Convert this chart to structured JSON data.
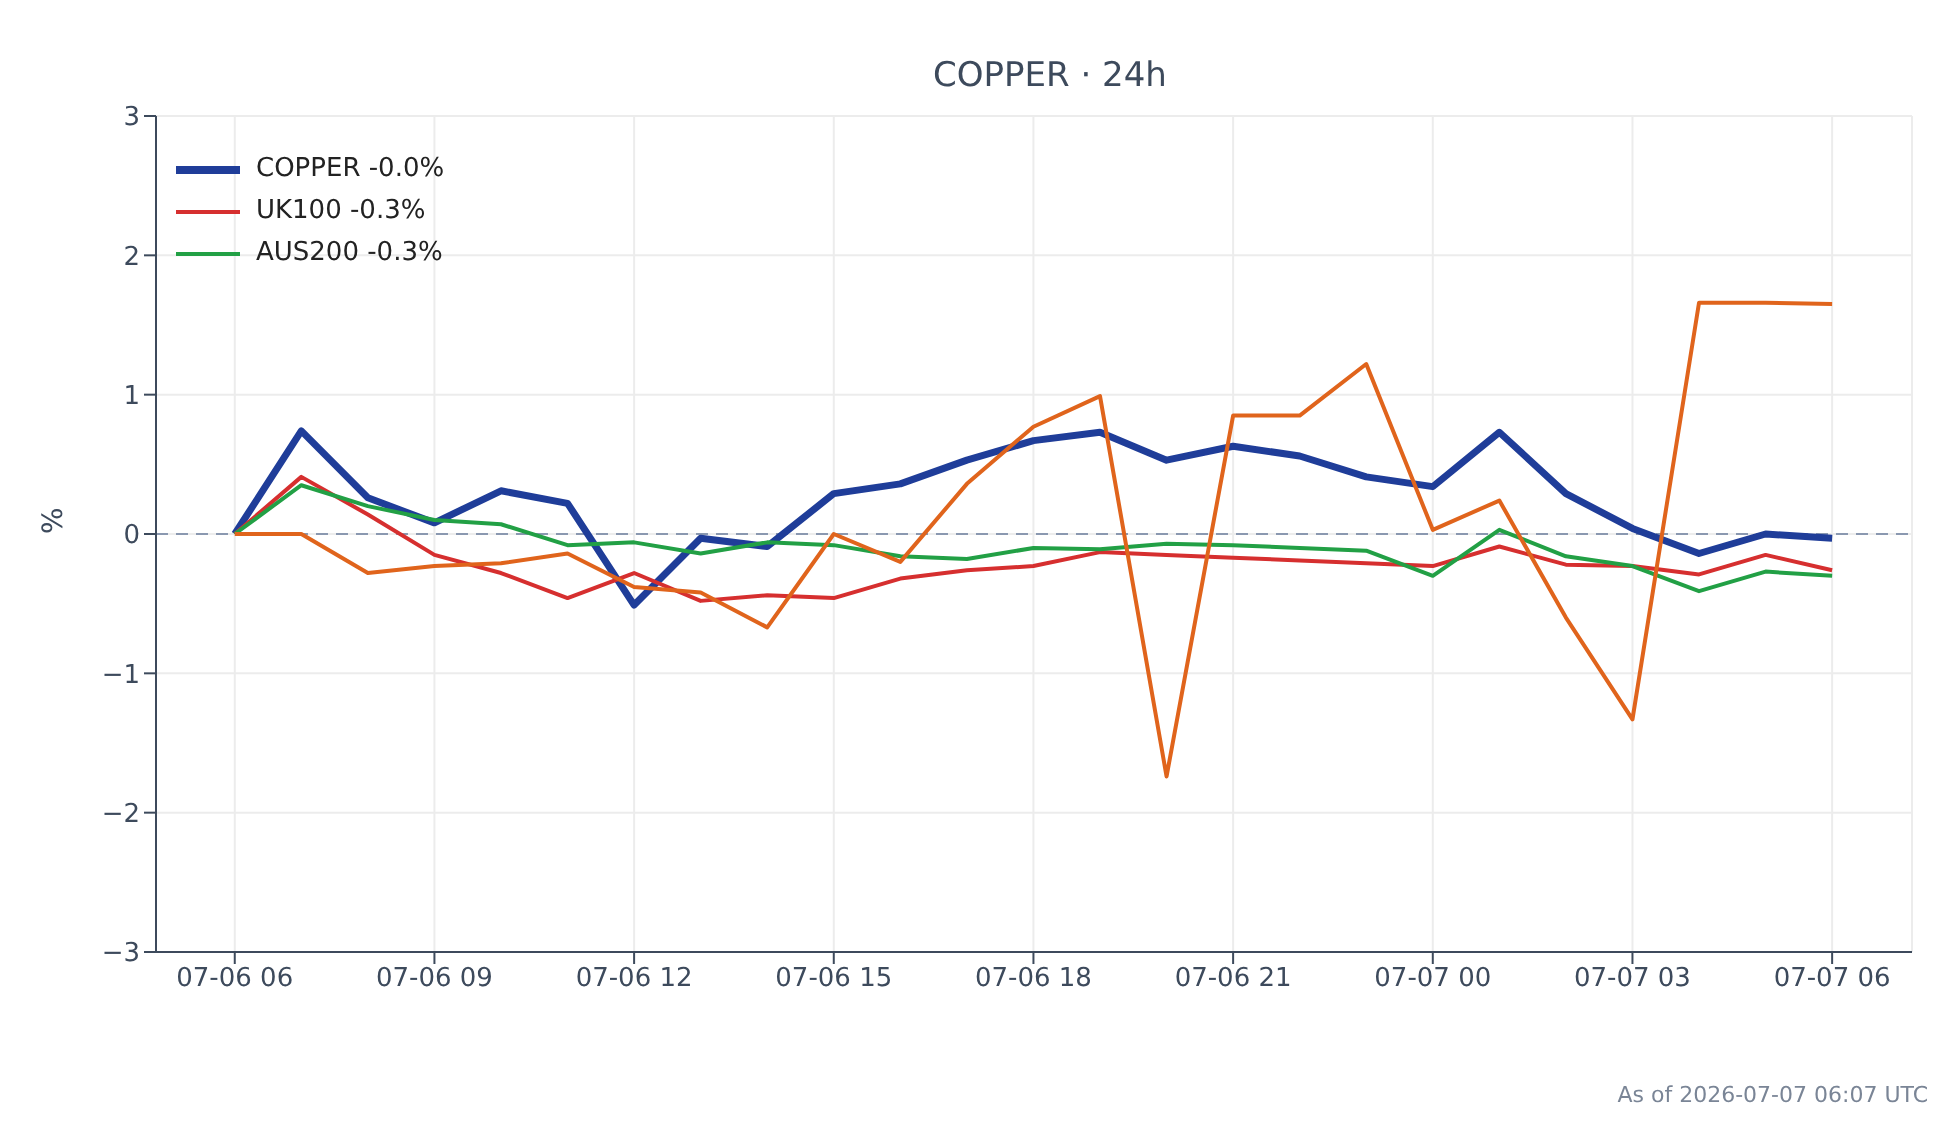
{
  "chart_data": {
    "type": "line",
    "title": "COPPER · 24h",
    "ylabel": "%",
    "x": [
      "2026-07-06T06:00",
      "2026-07-06T07:00",
      "2026-07-06T08:00",
      "2026-07-06T09:00",
      "2026-07-06T10:00",
      "2026-07-06T11:00",
      "2026-07-06T12:00",
      "2026-07-06T13:00",
      "2026-07-06T14:00",
      "2026-07-06T15:00",
      "2026-07-06T16:00",
      "2026-07-06T17:00",
      "2026-07-06T18:00",
      "2026-07-06T19:00",
      "2026-07-06T20:00",
      "2026-07-06T21:00",
      "2026-07-06T22:00",
      "2026-07-06T23:00",
      "2026-07-07T00:00",
      "2026-07-07T01:00",
      "2026-07-07T02:00",
      "2026-07-07T03:00",
      "2026-07-07T04:00",
      "2026-07-07T05:00",
      "2026-07-07T06:00"
    ],
    "series": [
      {
        "name": "COPPER -0.0%",
        "color": "#1f3d99",
        "values": [
          0,
          0.74,
          0.26,
          0.08,
          0.31,
          0.22,
          -0.51,
          -0.03,
          -0.09,
          0.29,
          0.36,
          0.53,
          0.67,
          0.73,
          0.53,
          0.63,
          0.56,
          0.41,
          0.34,
          0.73,
          0.29,
          0.04,
          -0.14,
          0,
          -0.03
        ]
      },
      {
        "name": "UK100 -0.3%",
        "color": "#d62f2f",
        "values": [
          0,
          0.41,
          0.14,
          -0.15,
          -0.28,
          -0.46,
          -0.28,
          -0.48,
          -0.44,
          -0.46,
          -0.32,
          -0.26,
          -0.23,
          -0.13,
          -0.15,
          -0.17,
          -0.19,
          -0.21,
          -0.23,
          -0.09,
          -0.22,
          -0.23,
          -0.29,
          -0.15,
          -0.26
        ]
      },
      {
        "name": "AUS200 -0.3%",
        "color": "#22a045",
        "values": [
          0,
          0.35,
          0.2,
          0.1,
          0.07,
          -0.08,
          -0.06,
          -0.14,
          -0.06,
          -0.08,
          -0.16,
          -0.18,
          -0.1,
          -0.11,
          -0.07,
          -0.08,
          -0.1,
          -0.12,
          -0.3,
          0.03,
          -0.16,
          -0.23,
          -0.41,
          -0.27,
          -0.3
        ]
      },
      {
        "color": "#e0641c",
        "values": [
          0,
          0,
          -0.28,
          -0.23,
          -0.21,
          -0.14,
          -0.38,
          -0.42,
          -0.67,
          0,
          -0.2,
          0.36,
          0.77,
          0.99,
          -1.74,
          0.85,
          0.85,
          1.22,
          0.03,
          0.24,
          -0.6,
          -1.33,
          1.66,
          1.66,
          1.65
        ]
      }
    ],
    "xlim": [
      "2026-07-06T04:49",
      "2026-07-07T07:12"
    ],
    "xticks": [
      {
        "value": "2026-07-06T06:00",
        "label": "07-06 06"
      },
      {
        "value": "2026-07-06T09:00",
        "label": "07-06 09"
      },
      {
        "value": "2026-07-06T12:00",
        "label": "07-06 12"
      },
      {
        "value": "2026-07-06T15:00",
        "label": "07-06 15"
      },
      {
        "value": "2026-07-06T18:00",
        "label": "07-06 18"
      },
      {
        "value": "2026-07-06T21:00",
        "label": "07-06 21"
      },
      {
        "value": "2026-07-07T00:00",
        "label": "07-07 00"
      },
      {
        "value": "2026-07-07T03:00",
        "label": "07-07 03"
      },
      {
        "value": "2026-07-07T06:00",
        "label": "07-07 06"
      }
    ],
    "ylim": [
      -3,
      3
    ],
    "yticks": [
      {
        "value": -3,
        "label": "−3"
      },
      {
        "value": -2,
        "label": "−2"
      },
      {
        "value": -1,
        "label": "−1"
      },
      0,
      1,
      2,
      3
    ],
    "ref_lines": [
      {
        "axis": "y",
        "value": 0,
        "color": "#8a98b0",
        "line_style": "dashed"
      }
    ],
    "grid": true,
    "legend": "top left",
    "marker": "none",
    "line_style": "solid",
    "annotations": [
      "As of 2026-07-07 06:07 UTC"
    ]
  }
}
